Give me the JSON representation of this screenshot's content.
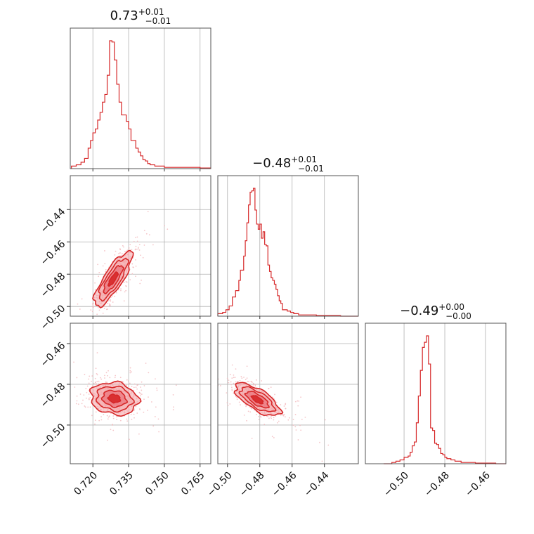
{
  "chart_data": {
    "type": "corner",
    "parameters": [
      {
        "title_value": "0.73",
        "title_plus": "+0.01",
        "title_minus": "−0.01",
        "range": [
          0.7105,
          0.7695
        ],
        "ticks": [
          0.72,
          0.735,
          0.75,
          0.765
        ],
        "tick_labels": [
          "0.720",
          "0.735",
          "0.750",
          "0.765"
        ],
        "hist_x": [
          0.711,
          0.713,
          0.715,
          0.7165,
          0.718,
          0.719,
          0.72,
          0.721,
          0.722,
          0.723,
          0.724,
          0.725,
          0.726,
          0.727,
          0.728,
          0.729,
          0.73,
          0.731,
          0.732,
          0.733,
          0.734,
          0.735,
          0.736,
          0.737,
          0.738,
          0.739,
          0.74,
          0.741,
          0.742,
          0.743,
          0.744,
          0.746,
          0.748,
          0.75,
          0.753,
          0.756,
          0.76,
          0.765,
          0.769
        ],
        "hist_y": [
          0.02,
          0.03,
          0.05,
          0.08,
          0.16,
          0.22,
          0.28,
          0.31,
          0.38,
          0.44,
          0.52,
          0.58,
          0.73,
          1.0,
          0.99,
          0.85,
          0.66,
          0.52,
          0.42,
          0.42,
          0.37,
          0.31,
          0.22,
          0.22,
          0.16,
          0.13,
          0.1,
          0.07,
          0.06,
          0.04,
          0.03,
          0.02,
          0.02,
          0.01,
          0.01,
          0.01,
          0.01,
          0.005,
          0.005
        ]
      },
      {
        "title_value": "−0.48",
        "title_plus": "+0.01",
        "title_minus": "−0.01",
        "range": [
          -0.506,
          -0.419
        ],
        "ticks": [
          -0.5,
          -0.48,
          -0.46,
          -0.44
        ],
        "tick_labels": [
          "−0.50",
          "−0.48",
          "−0.46",
          "−0.44"
        ],
        "row_ticks": [
          -0.5,
          -0.48,
          -0.46,
          -0.44
        ],
        "hist_x": [
          -0.506,
          -0.503,
          -0.501,
          -0.499,
          -0.497,
          -0.495,
          -0.493,
          -0.492,
          -0.49,
          -0.489,
          -0.488,
          -0.487,
          -0.486,
          -0.485,
          -0.484,
          -0.483,
          -0.482,
          -0.481,
          -0.48,
          -0.479,
          -0.478,
          -0.477,
          -0.476,
          -0.475,
          -0.474,
          -0.473,
          -0.472,
          -0.471,
          -0.47,
          -0.469,
          -0.468,
          -0.467,
          -0.466,
          -0.465,
          -0.463,
          -0.461,
          -0.459,
          -0.456,
          -0.453,
          -0.449,
          -0.445,
          -0.44,
          -0.43
        ],
        "hist_y": [
          0.02,
          0.03,
          0.05,
          0.08,
          0.15,
          0.2,
          0.28,
          0.36,
          0.47,
          0.59,
          0.73,
          0.87,
          0.97,
          0.98,
          1.0,
          0.83,
          0.72,
          0.68,
          0.72,
          0.61,
          0.66,
          0.56,
          0.55,
          0.4,
          0.35,
          0.3,
          0.28,
          0.25,
          0.21,
          0.16,
          0.12,
          0.1,
          0.05,
          0.05,
          0.04,
          0.03,
          0.02,
          0.01,
          0.01,
          0.01,
          0.005,
          0.005,
          0.0
        ]
      },
      {
        "title_value": "−0.49",
        "title_plus": "+0.00",
        "title_minus": "−0.00",
        "range": [
          -0.519,
          -0.45
        ],
        "ticks": [
          -0.5,
          -0.48,
          -0.46
        ],
        "tick_labels": [
          "−0.50",
          "−0.48",
          "−0.46"
        ],
        "row_ticks": [
          -0.5,
          -0.48,
          -0.46
        ],
        "hist_x": [
          -0.51,
          -0.506,
          -0.504,
          -0.502,
          -0.5,
          -0.498,
          -0.497,
          -0.496,
          -0.495,
          -0.494,
          -0.493,
          -0.492,
          -0.491,
          -0.49,
          -0.489,
          -0.488,
          -0.487,
          -0.486,
          -0.485,
          -0.484,
          -0.483,
          -0.482,
          -0.481,
          -0.48,
          -0.479,
          -0.477,
          -0.475,
          -0.472,
          -0.469,
          -0.465,
          -0.46,
          -0.455
        ],
        "hist_y": [
          0.0,
          0.01,
          0.02,
          0.03,
          0.05,
          0.06,
          0.09,
          0.14,
          0.17,
          0.32,
          0.53,
          0.73,
          0.91,
          0.95,
          1.0,
          0.78,
          0.28,
          0.26,
          0.16,
          0.15,
          0.12,
          0.08,
          0.07,
          0.05,
          0.04,
          0.03,
          0.02,
          0.01,
          0.01,
          0.005,
          0.005,
          0.0
        ]
      }
    ],
    "pairs": [
      {
        "x_param": 0,
        "y_param": 1,
        "center": [
          0.7285,
          -0.483
        ],
        "sigma": [
          0.004,
          0.0085
        ],
        "rho": 0.82,
        "levels": [
          0.5,
          1.0,
          1.5,
          2.0
        ]
      },
      {
        "x_param": 0,
        "y_param": 2,
        "center": [
          0.729,
          -0.487
        ],
        "sigma": [
          0.005,
          0.004
        ],
        "rho": -0.15,
        "levels": [
          0.5,
          1.0,
          1.5,
          2.0
        ]
      },
      {
        "x_param": 1,
        "y_param": 2,
        "center": [
          -0.4815,
          -0.4875
        ],
        "sigma": [
          0.007,
          0.004
        ],
        "rho": -0.7,
        "levels": [
          0.5,
          1.0,
          1.5,
          2.0
        ]
      }
    ],
    "colors": {
      "line": "#d62728",
      "fill": "#f4a3a6",
      "fill_inner": "#e8606a",
      "scatter": "#f2b8bc",
      "grid": "#b0b0b0"
    },
    "grid": true
  }
}
